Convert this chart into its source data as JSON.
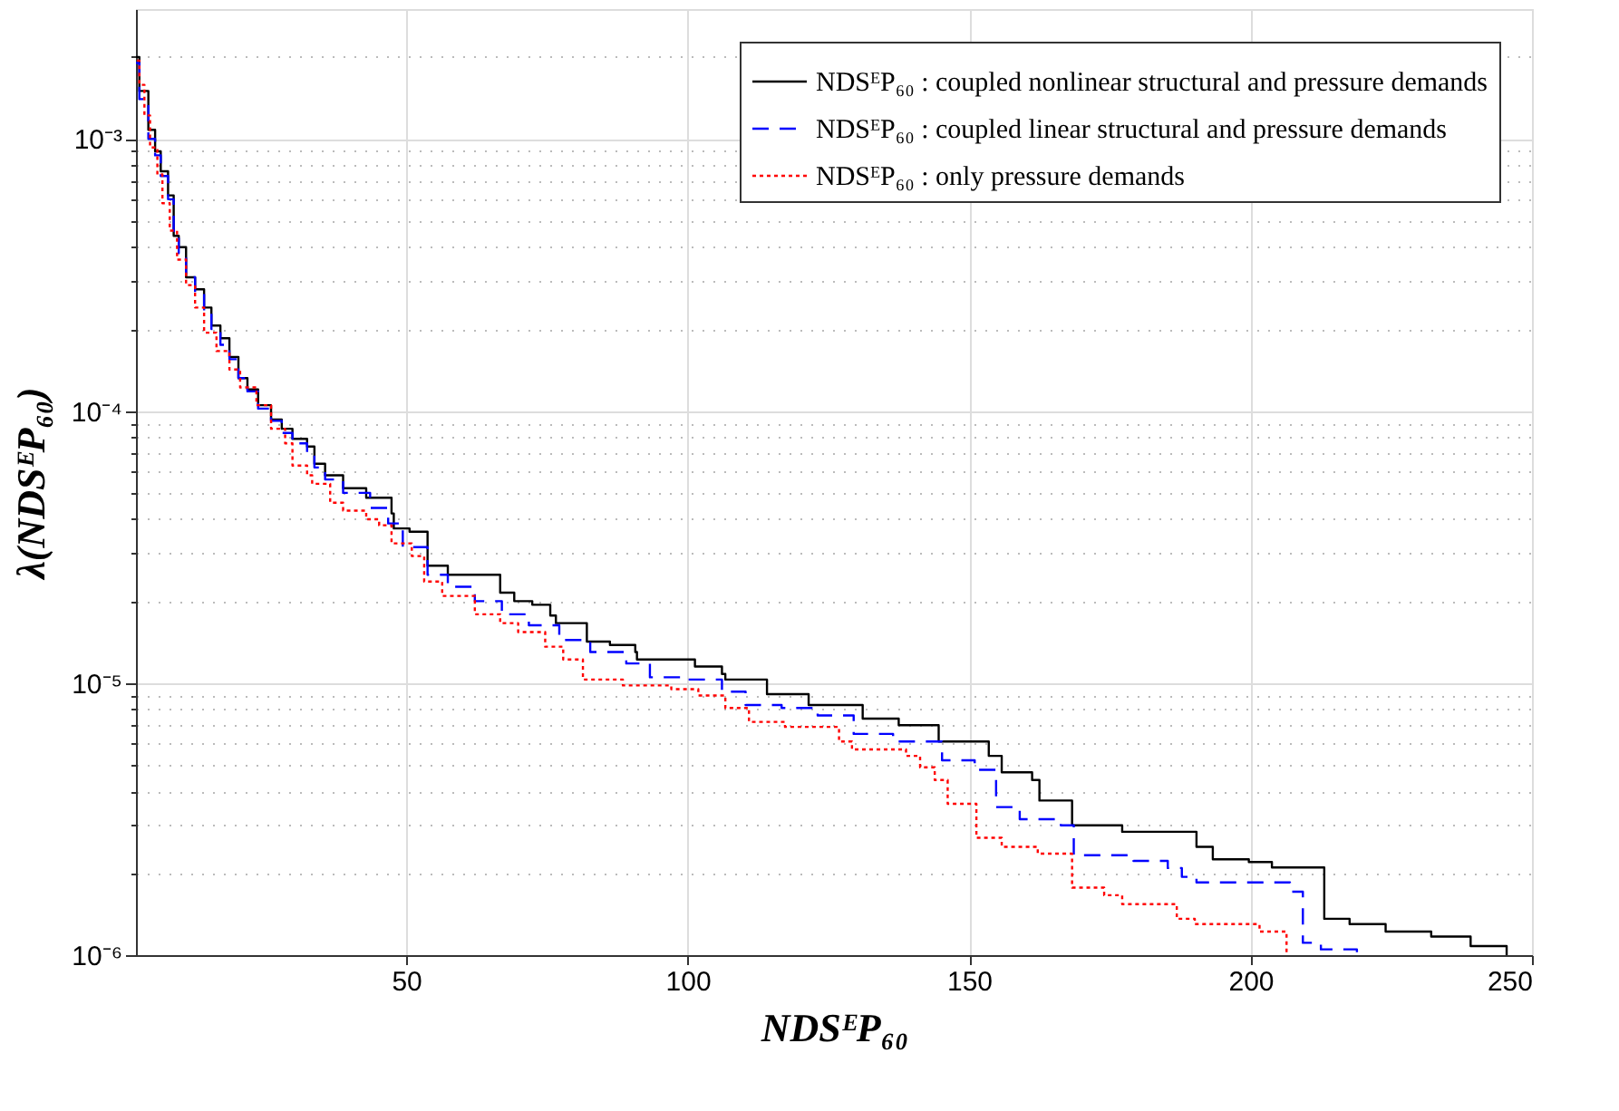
{
  "chart_data": {
    "type": "step",
    "xlabel": "NDSᴱP₆₀",
    "ylabel": "λ(NDSᴱP₆₀)",
    "log": "y",
    "grid": true,
    "legend": "top right",
    "marker": "none",
    "xlim": [
      2,
      250
    ],
    "xticks": [
      50,
      100,
      150,
      200,
      250
    ],
    "ylim": [
      1e-06,
      0.003
    ],
    "yticks": [
      {
        "value": 1e-06,
        "label": "10⁻⁶"
      },
      {
        "value": 2e-06,
        "label": null
      },
      {
        "value": 3e-06,
        "label": null
      },
      {
        "value": 4e-06,
        "label": null
      },
      {
        "value": 5e-06,
        "label": null
      },
      {
        "value": 6e-06,
        "label": null
      },
      {
        "value": 7e-06,
        "label": null
      },
      {
        "value": 8e-06,
        "label": null
      },
      {
        "value": 9e-06,
        "label": null
      },
      {
        "value": 1e-05,
        "label": "10⁻⁵"
      },
      {
        "value": 2e-05,
        "label": null
      },
      {
        "value": 3e-05,
        "label": null
      },
      {
        "value": 4e-05,
        "label": null
      },
      {
        "value": 5e-05,
        "label": null
      },
      {
        "value": 6e-05,
        "label": null
      },
      {
        "value": 7e-05,
        "label": null
      },
      {
        "value": 8e-05,
        "label": null
      },
      {
        "value": 9e-05,
        "label": null
      },
      {
        "value": 0.0001,
        "label": "10⁻⁴"
      },
      {
        "value": 0.0002,
        "label": null
      },
      {
        "value": 0.0003,
        "label": null
      },
      {
        "value": 0.0004,
        "label": null
      },
      {
        "value": 0.0005,
        "label": null
      },
      {
        "value": 0.0006,
        "label": null
      },
      {
        "value": 0.0007,
        "label": null
      },
      {
        "value": 0.0008,
        "label": null
      },
      {
        "value": 0.0009,
        "label": null
      },
      {
        "value": 0.001,
        "label": "10⁻³"
      },
      {
        "value": 0.002,
        "label": null
      }
    ],
    "series": [
      {
        "name": "NDSᴱP₆₀ : coupled nonlinear structural and pressure demands",
        "color": "#000000",
        "line_style": "solid",
        "x": [
          2,
          2.6,
          4.2,
          5.4,
          6.4,
          7.7,
          8.7,
          9.6,
          10.9,
          12.5,
          14.1,
          15.4,
          17,
          18.6,
          20.2,
          21.8,
          23.7,
          26,
          27.9,
          29.8,
          32.4,
          33.7,
          35.6,
          38.8,
          42.9,
          47.4,
          47.8,
          50.6,
          53.8,
          57.4,
          66.7,
          69.2,
          72.4,
          75.6,
          76.6,
          82.1,
          86.2,
          90.7,
          91,
          101.3,
          106.1,
          106.7,
          114.1,
          121.5,
          131.1,
          137.5,
          144.6,
          153.5,
          155.8,
          161.2,
          162.5,
          168.3,
          177.2,
          190.4,
          193.3,
          199.7,
          203.8,
          213.1,
          217.6,
          224,
          232.1,
          239.1,
          245.5
        ],
        "values": [
          0.002,
          0.0015,
          0.00108,
          0.0009,
          0.00076,
          0.00062,
          0.00044,
          0.0004,
          0.00031,
          0.00028,
          0.00024,
          0.000206,
          0.000185,
          0.000158,
          0.000132,
          0.00012,
          0.000105,
          9.3e-05,
          8.6e-05,
          7.9e-05,
          7.4e-05,
          6.4e-05,
          5.8e-05,
          5.2e-05,
          4.8e-05,
          4.2e-05,
          3.7e-05,
          3.6e-05,
          2.7e-05,
          2.5e-05,
          2.15e-05,
          2e-05,
          1.94e-05,
          1.77e-05,
          1.66e-05,
          1.42e-05,
          1.38e-05,
          1.3e-05,
          1.22e-05,
          1.15e-05,
          1.08e-05,
          1.03e-05,
          9.1e-06,
          8.3e-06,
          7.4e-06,
          7e-06,
          6.1e-06,
          5.4e-06,
          4.7e-06,
          4.4e-06,
          3.7e-06,
          3e-06,
          2.84e-06,
          2.5e-06,
          2.25e-06,
          2.2e-06,
          2.1e-06,
          1.36e-06,
          1.3e-06,
          1.22e-06,
          1.17e-06,
          1.08e-06,
          1e-06
        ]
      },
      {
        "name": "NDSᴱP₆₀ : coupled linear structural and pressure demands",
        "color": "#0000ff",
        "line_style": "dashed",
        "x": [
          2,
          2.6,
          4.2,
          5.4,
          6.4,
          7.7,
          8.7,
          9.6,
          10.9,
          12.5,
          14.1,
          15.4,
          17,
          18.6,
          20.2,
          21.8,
          23.7,
          26,
          27.9,
          29.8,
          32.4,
          33.7,
          35.6,
          38.8,
          43.6,
          46.8,
          49.4,
          53.8,
          57.4,
          62.2,
          67,
          71.8,
          77.2,
          82.7,
          89.1,
          93.3,
          99,
          106.1,
          110.3,
          116.7,
          123.1,
          129.5,
          136.5,
          145.2,
          151,
          154.8,
          159,
          166.3,
          168.6,
          179.2,
          185.3,
          187.8,
          190.4,
          207,
          209.3,
          212.5,
          218.9
        ],
        "values": [
          0.0019,
          0.0014,
          0.001,
          0.00087,
          0.00073,
          0.0006,
          0.00046,
          0.00038,
          0.00031,
          0.00027,
          0.00023,
          0.0002,
          0.000175,
          0.000155,
          0.000132,
          0.000118,
          0.000102,
          9.2e-05,
          8.3e-05,
          7.6e-05,
          7e-05,
          6.2e-05,
          5.6e-05,
          5e-05,
          4.4e-05,
          3.86e-05,
          3.16e-05,
          2.5e-05,
          2.26e-05,
          2e-05,
          1.79e-05,
          1.63e-05,
          1.44e-05,
          1.3e-05,
          1.18e-05,
          1.05e-05,
          1.03e-05,
          9.3e-06,
          8.3e-06,
          8.1e-06,
          7.6e-06,
          6.5e-06,
          6.1e-06,
          5.2e-06,
          4.8e-06,
          3.5e-06,
          3.16e-06,
          3e-06,
          2.33e-06,
          2.22e-06,
          2.09e-06,
          1.94e-06,
          1.85e-06,
          1.71e-06,
          1.11e-06,
          1.05e-06,
          1e-06
        ]
      },
      {
        "name": "NDSᴱP₆₀ : only pressure demands",
        "color": "#ff0000",
        "line_style": "dotted",
        "x": [
          2.2,
          2.6,
          3.5,
          4.5,
          5.8,
          6.7,
          8,
          9.3,
          10.9,
          12.5,
          14.1,
          16.3,
          18.6,
          20.5,
          23.4,
          26,
          28.5,
          29.8,
          32.4,
          33.3,
          36.5,
          38.8,
          42.9,
          45.2,
          47.4,
          51,
          53.2,
          56.4,
          62.2,
          66.7,
          69.9,
          74.7,
          77.9,
          81.4,
          88.5,
          97.1,
          101.9,
          106.7,
          110.9,
          117.3,
          126.9,
          129.2,
          138.8,
          141.3,
          143.9,
          146.2,
          151.3,
          155.8,
          162.2,
          168.3,
          174,
          177.2,
          186.9,
          190.1,
          201.6,
          206.4
        ],
        "values": [
          0.00194,
          0.00158,
          0.00122,
          0.00093,
          0.00074,
          0.00058,
          0.00046,
          0.00036,
          0.00029,
          0.00024,
          0.000194,
          0.000166,
          0.000142,
          0.000122,
          0.000105,
          8.6e-05,
          7.6e-05,
          6.3e-05,
          5.8e-05,
          5.4e-05,
          4.6e-05,
          4.3e-05,
          4e-05,
          3.8e-05,
          3.26e-05,
          2.93e-05,
          2.36e-05,
          2.09e-05,
          1.79e-05,
          1.66e-05,
          1.54e-05,
          1.36e-05,
          1.22e-05,
          1.03e-05,
          9.8e-06,
          9.5e-06,
          9e-06,
          8.1e-06,
          7.2e-06,
          6.9e-06,
          6.1e-06,
          5.7e-06,
          5.4e-06,
          4.9e-06,
          4.4e-06,
          3.6e-06,
          2.7e-06,
          2.5e-06,
          2.36e-06,
          1.77e-06,
          1.66e-06,
          1.54e-06,
          1.36e-06,
          1.3e-06,
          1.22e-06,
          1e-06
        ]
      }
    ]
  }
}
